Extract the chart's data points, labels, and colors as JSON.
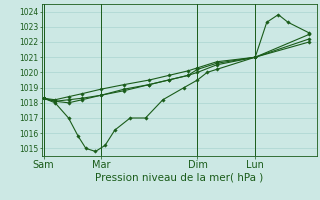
{
  "xlabel": "Pression niveau de la mer( hPa )",
  "ylim": [
    1014.5,
    1024.5
  ],
  "yticks": [
    1015,
    1016,
    1017,
    1018,
    1019,
    1020,
    1021,
    1022,
    1023,
    1024
  ],
  "bg_color": "#cce8e4",
  "grid_color": "#aad4d0",
  "line_color": "#1a5c1a",
  "xtick_labels": [
    "Sam",
    "Mar",
    "Dim",
    "Lun"
  ],
  "xtick_positions": [
    0.0,
    3.0,
    8.0,
    11.0
  ],
  "xlim": [
    -0.1,
    14.2
  ],
  "series": [
    {
      "x": [
        0.0,
        0.6,
        1.3,
        2.0,
        3.0,
        4.2,
        5.5,
        6.5,
        7.5,
        8.0,
        9.0,
        11.0,
        13.8
      ],
      "y": [
        1018.3,
        1018.1,
        1018.2,
        1018.3,
        1018.5,
        1018.8,
        1019.2,
        1019.5,
        1019.8,
        1020.0,
        1020.5,
        1021.0,
        1022.5
      ]
    },
    {
      "x": [
        0.0,
        0.6,
        1.3,
        1.8,
        2.2,
        2.7,
        3.2,
        3.7,
        4.5,
        5.3,
        6.2,
        7.3,
        8.0,
        8.5,
        9.0,
        11.0,
        11.6,
        12.2,
        12.7,
        13.8
      ],
      "y": [
        1018.3,
        1018.0,
        1017.0,
        1015.8,
        1015.0,
        1014.8,
        1015.2,
        1016.2,
        1017.0,
        1017.0,
        1018.2,
        1019.0,
        1019.5,
        1020.0,
        1020.2,
        1021.0,
        1023.3,
        1023.8,
        1023.3,
        1022.6
      ]
    },
    {
      "x": [
        0.0,
        0.6,
        1.3,
        2.0,
        3.0,
        4.2,
        5.5,
        6.5,
        7.5,
        8.0,
        9.0,
        11.0,
        13.8
      ],
      "y": [
        1018.3,
        1018.2,
        1018.4,
        1018.6,
        1018.9,
        1019.2,
        1019.5,
        1019.8,
        1020.1,
        1020.3,
        1020.7,
        1021.0,
        1022.0
      ]
    },
    {
      "x": [
        0.0,
        0.6,
        1.3,
        2.0,
        3.0,
        4.2,
        5.5,
        6.5,
        7.5,
        8.0,
        9.0,
        11.0,
        13.8
      ],
      "y": [
        1018.3,
        1018.1,
        1018.0,
        1018.2,
        1018.5,
        1018.9,
        1019.2,
        1019.5,
        1019.8,
        1020.2,
        1020.6,
        1021.0,
        1022.2
      ]
    }
  ],
  "marker_size": 1.8,
  "linewidth": 0.8,
  "ylabel_fontsize": 5.5,
  "xlabel_fontsize": 7.5,
  "xtick_fontsize": 7.0
}
